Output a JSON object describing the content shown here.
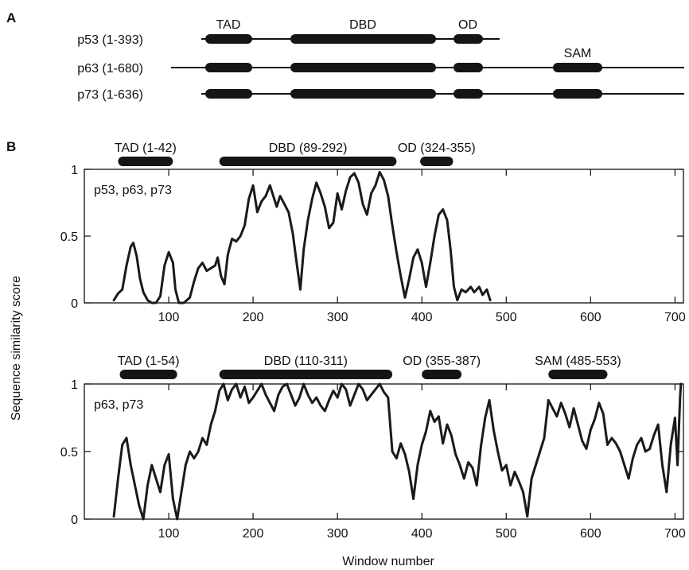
{
  "figure": {
    "panel_a_label": "A",
    "panel_b_label": "B",
    "ylabel": "Sequence similarity score",
    "xlabel": "Window number"
  },
  "domain_map": {
    "proteins": [
      {
        "label": "p53 (1-393)",
        "line": [
          253,
          628
        ],
        "domains": [
          {
            "name": "TAD",
            "span": [
              258,
              317
            ]
          },
          {
            "name": "DBD",
            "span": [
              365,
              548
            ]
          },
          {
            "name": "OD",
            "span": [
              570,
              607
            ]
          }
        ]
      },
      {
        "label": "p63 (1-680)",
        "line": [
          215,
          860
        ],
        "domains": [
          {
            "name": "TAD",
            "span": [
              258,
              317
            ]
          },
          {
            "name": "DBD",
            "span": [
              365,
              548
            ]
          },
          {
            "name": "OD",
            "span": [
              570,
              607
            ]
          },
          {
            "name": "SAM",
            "span": [
              695,
              757
            ]
          }
        ]
      },
      {
        "label": "p73 (1-636)",
        "line": [
          253,
          860
        ],
        "domains": [
          {
            "name": "TAD",
            "span": [
              258,
              317
            ]
          },
          {
            "name": "DBD",
            "span": [
              365,
              548
            ]
          },
          {
            "name": "OD",
            "span": [
              570,
              607
            ]
          },
          {
            "name": "SAM",
            "span": [
              695,
              757
            ]
          }
        ]
      }
    ],
    "domain_labels": {
      "TAD": "TAD",
      "DBD": "DBD",
      "OD": "OD",
      "SAM": "SAM"
    }
  },
  "chart_data": [
    {
      "type": "line",
      "panel_label": "p53, p63, p73",
      "xlim": [
        0,
        710
      ],
      "ylim": [
        0,
        1
      ],
      "xticks": [
        100,
        200,
        300,
        400,
        500,
        600,
        700
      ],
      "yticks": [
        0,
        0.5,
        1
      ],
      "ytick_labels": [
        "0",
        "0.5",
        "1"
      ],
      "grid": false,
      "domains": [
        {
          "label": "TAD (1-42)",
          "range": [
            40,
            105
          ]
        },
        {
          "label": "DBD (89-292)",
          "range": [
            160,
            370
          ]
        },
        {
          "label": "OD (324-355)",
          "range": [
            398,
            437
          ]
        }
      ],
      "series": [
        {
          "points": [
            [
              35,
              0.02
            ],
            [
              40,
              0.07
            ],
            [
              45,
              0.1
            ],
            [
              50,
              0.28
            ],
            [
              55,
              0.42
            ],
            [
              58,
              0.45
            ],
            [
              62,
              0.35
            ],
            [
              66,
              0.18
            ],
            [
              70,
              0.08
            ],
            [
              75,
              0.02
            ],
            [
              80,
              0.0
            ],
            [
              85,
              0.0
            ],
            [
              90,
              0.05
            ],
            [
              95,
              0.28
            ],
            [
              100,
              0.38
            ],
            [
              105,
              0.3
            ],
            [
              108,
              0.1
            ],
            [
              112,
              0.0
            ],
            [
              118,
              0.0
            ],
            [
              125,
              0.04
            ],
            [
              130,
              0.16
            ],
            [
              135,
              0.26
            ],
            [
              140,
              0.3
            ],
            [
              145,
              0.24
            ],
            [
              150,
              0.26
            ],
            [
              155,
              0.28
            ],
            [
              158,
              0.34
            ],
            [
              162,
              0.2
            ],
            [
              166,
              0.14
            ],
            [
              170,
              0.36
            ],
            [
              175,
              0.48
            ],
            [
              180,
              0.46
            ],
            [
              185,
              0.5
            ],
            [
              190,
              0.58
            ],
            [
              195,
              0.78
            ],
            [
              200,
              0.88
            ],
            [
              205,
              0.68
            ],
            [
              210,
              0.76
            ],
            [
              215,
              0.8
            ],
            [
              220,
              0.88
            ],
            [
              225,
              0.78
            ],
            [
              228,
              0.72
            ],
            [
              232,
              0.8
            ],
            [
              237,
              0.74
            ],
            [
              242,
              0.68
            ],
            [
              247,
              0.52
            ],
            [
              252,
              0.28
            ],
            [
              256,
              0.1
            ],
            [
              260,
              0.4
            ],
            [
              265,
              0.62
            ],
            [
              270,
              0.78
            ],
            [
              275,
              0.9
            ],
            [
              280,
              0.82
            ],
            [
              285,
              0.72
            ],
            [
              290,
              0.56
            ],
            [
              295,
              0.6
            ],
            [
              300,
              0.82
            ],
            [
              305,
              0.7
            ],
            [
              310,
              0.84
            ],
            [
              315,
              0.94
            ],
            [
              320,
              0.97
            ],
            [
              325,
              0.9
            ],
            [
              330,
              0.74
            ],
            [
              335,
              0.66
            ],
            [
              340,
              0.82
            ],
            [
              345,
              0.88
            ],
            [
              350,
              0.98
            ],
            [
              355,
              0.92
            ],
            [
              360,
              0.8
            ],
            [
              365,
              0.58
            ],
            [
              370,
              0.38
            ],
            [
              375,
              0.2
            ],
            [
              380,
              0.04
            ],
            [
              385,
              0.18
            ],
            [
              390,
              0.34
            ],
            [
              395,
              0.4
            ],
            [
              400,
              0.3
            ],
            [
              405,
              0.12
            ],
            [
              410,
              0.3
            ],
            [
              415,
              0.5
            ],
            [
              420,
              0.66
            ],
            [
              425,
              0.7
            ],
            [
              430,
              0.62
            ],
            [
              434,
              0.4
            ],
            [
              438,
              0.12
            ],
            [
              442,
              0.02
            ],
            [
              447,
              0.1
            ],
            [
              452,
              0.08
            ],
            [
              458,
              0.12
            ],
            [
              462,
              0.08
            ],
            [
              468,
              0.12
            ],
            [
              472,
              0.06
            ],
            [
              477,
              0.1
            ],
            [
              481,
              0.02
            ]
          ]
        }
      ]
    },
    {
      "type": "line",
      "panel_label": "p63, p73",
      "xlim": [
        0,
        710
      ],
      "ylim": [
        0,
        1
      ],
      "xticks": [
        100,
        200,
        300,
        400,
        500,
        600,
        700
      ],
      "xtick_labels": [
        "100",
        "200",
        "300",
        "400",
        "500",
        "600",
        "700"
      ],
      "yticks": [
        0,
        0.5,
        1
      ],
      "ytick_labels": [
        "0",
        "0.5",
        "1"
      ],
      "grid": false,
      "domains": [
        {
          "label": "TAD (1-54)",
          "range": [
            42,
            110
          ]
        },
        {
          "label": "DBD (110-311)",
          "range": [
            160,
            365
          ]
        },
        {
          "label": "OD (355-387)",
          "range": [
            400,
            447
          ]
        },
        {
          "label": "SAM (485-553)",
          "range": [
            550,
            620
          ]
        }
      ],
      "series": [
        {
          "points": [
            [
              35,
              0.02
            ],
            [
              40,
              0.3
            ],
            [
              45,
              0.55
            ],
            [
              50,
              0.6
            ],
            [
              55,
              0.4
            ],
            [
              60,
              0.25
            ],
            [
              65,
              0.1
            ],
            [
              70,
              0.0
            ],
            [
              75,
              0.25
            ],
            [
              80,
              0.4
            ],
            [
              85,
              0.3
            ],
            [
              90,
              0.2
            ],
            [
              95,
              0.4
            ],
            [
              100,
              0.48
            ],
            [
              105,
              0.15
            ],
            [
              110,
              0.0
            ],
            [
              115,
              0.2
            ],
            [
              120,
              0.4
            ],
            [
              125,
              0.5
            ],
            [
              130,
              0.45
            ],
            [
              135,
              0.5
            ],
            [
              140,
              0.6
            ],
            [
              145,
              0.55
            ],
            [
              150,
              0.7
            ],
            [
              155,
              0.8
            ],
            [
              160,
              0.95
            ],
            [
              165,
              1.0
            ],
            [
              170,
              0.88
            ],
            [
              175,
              0.96
            ],
            [
              180,
              1.0
            ],
            [
              185,
              0.9
            ],
            [
              190,
              0.98
            ],
            [
              195,
              0.86
            ],
            [
              200,
              0.9
            ],
            [
              205,
              0.95
            ],
            [
              210,
              1.0
            ],
            [
              215,
              0.92
            ],
            [
              220,
              0.86
            ],
            [
              225,
              0.8
            ],
            [
              230,
              0.92
            ],
            [
              235,
              0.98
            ],
            [
              240,
              1.0
            ],
            [
              245,
              0.92
            ],
            [
              250,
              0.84
            ],
            [
              255,
              0.9
            ],
            [
              260,
              1.0
            ],
            [
              265,
              0.92
            ],
            [
              270,
              0.86
            ],
            [
              275,
              0.9
            ],
            [
              280,
              0.84
            ],
            [
              285,
              0.8
            ],
            [
              290,
              0.88
            ],
            [
              295,
              0.95
            ],
            [
              300,
              0.9
            ],
            [
              305,
              1.0
            ],
            [
              310,
              0.96
            ],
            [
              315,
              0.84
            ],
            [
              320,
              0.92
            ],
            [
              325,
              1.0
            ],
            [
              330,
              0.96
            ],
            [
              335,
              0.88
            ],
            [
              340,
              0.92
            ],
            [
              345,
              0.96
            ],
            [
              350,
              1.0
            ],
            [
              355,
              0.94
            ],
            [
              360,
              0.9
            ],
            [
              365,
              0.5
            ],
            [
              370,
              0.45
            ],
            [
              375,
              0.56
            ],
            [
              380,
              0.48
            ],
            [
              385,
              0.35
            ],
            [
              390,
              0.15
            ],
            [
              395,
              0.4
            ],
            [
              400,
              0.55
            ],
            [
              405,
              0.65
            ],
            [
              410,
              0.8
            ],
            [
              415,
              0.72
            ],
            [
              420,
              0.76
            ],
            [
              425,
              0.56
            ],
            [
              430,
              0.7
            ],
            [
              435,
              0.62
            ],
            [
              440,
              0.48
            ],
            [
              445,
              0.4
            ],
            [
              450,
              0.3
            ],
            [
              455,
              0.42
            ],
            [
              460,
              0.38
            ],
            [
              465,
              0.25
            ],
            [
              470,
              0.54
            ],
            [
              475,
              0.75
            ],
            [
              480,
              0.88
            ],
            [
              485,
              0.66
            ],
            [
              490,
              0.5
            ],
            [
              495,
              0.36
            ],
            [
              500,
              0.4
            ],
            [
              505,
              0.25
            ],
            [
              510,
              0.35
            ],
            [
              515,
              0.28
            ],
            [
              520,
              0.2
            ],
            [
              525,
              0.02
            ],
            [
              530,
              0.3
            ],
            [
              535,
              0.4
            ],
            [
              540,
              0.5
            ],
            [
              545,
              0.6
            ],
            [
              550,
              0.88
            ],
            [
              555,
              0.82
            ],
            [
              560,
              0.76
            ],
            [
              565,
              0.86
            ],
            [
              570,
              0.78
            ],
            [
              575,
              0.68
            ],
            [
              580,
              0.82
            ],
            [
              585,
              0.7
            ],
            [
              590,
              0.58
            ],
            [
              595,
              0.52
            ],
            [
              600,
              0.66
            ],
            [
              605,
              0.74
            ],
            [
              610,
              0.86
            ],
            [
              615,
              0.78
            ],
            [
              620,
              0.55
            ],
            [
              625,
              0.6
            ],
            [
              630,
              0.56
            ],
            [
              635,
              0.5
            ],
            [
              640,
              0.4
            ],
            [
              645,
              0.3
            ],
            [
              650,
              0.45
            ],
            [
              655,
              0.55
            ],
            [
              660,
              0.6
            ],
            [
              665,
              0.5
            ],
            [
              670,
              0.52
            ],
            [
              675,
              0.62
            ],
            [
              680,
              0.7
            ],
            [
              685,
              0.4
            ],
            [
              690,
              0.2
            ],
            [
              695,
              0.55
            ],
            [
              700,
              0.75
            ],
            [
              703,
              0.4
            ],
            [
              706,
              0.9
            ],
            [
              707,
              1.0
            ]
          ]
        }
      ]
    }
  ]
}
